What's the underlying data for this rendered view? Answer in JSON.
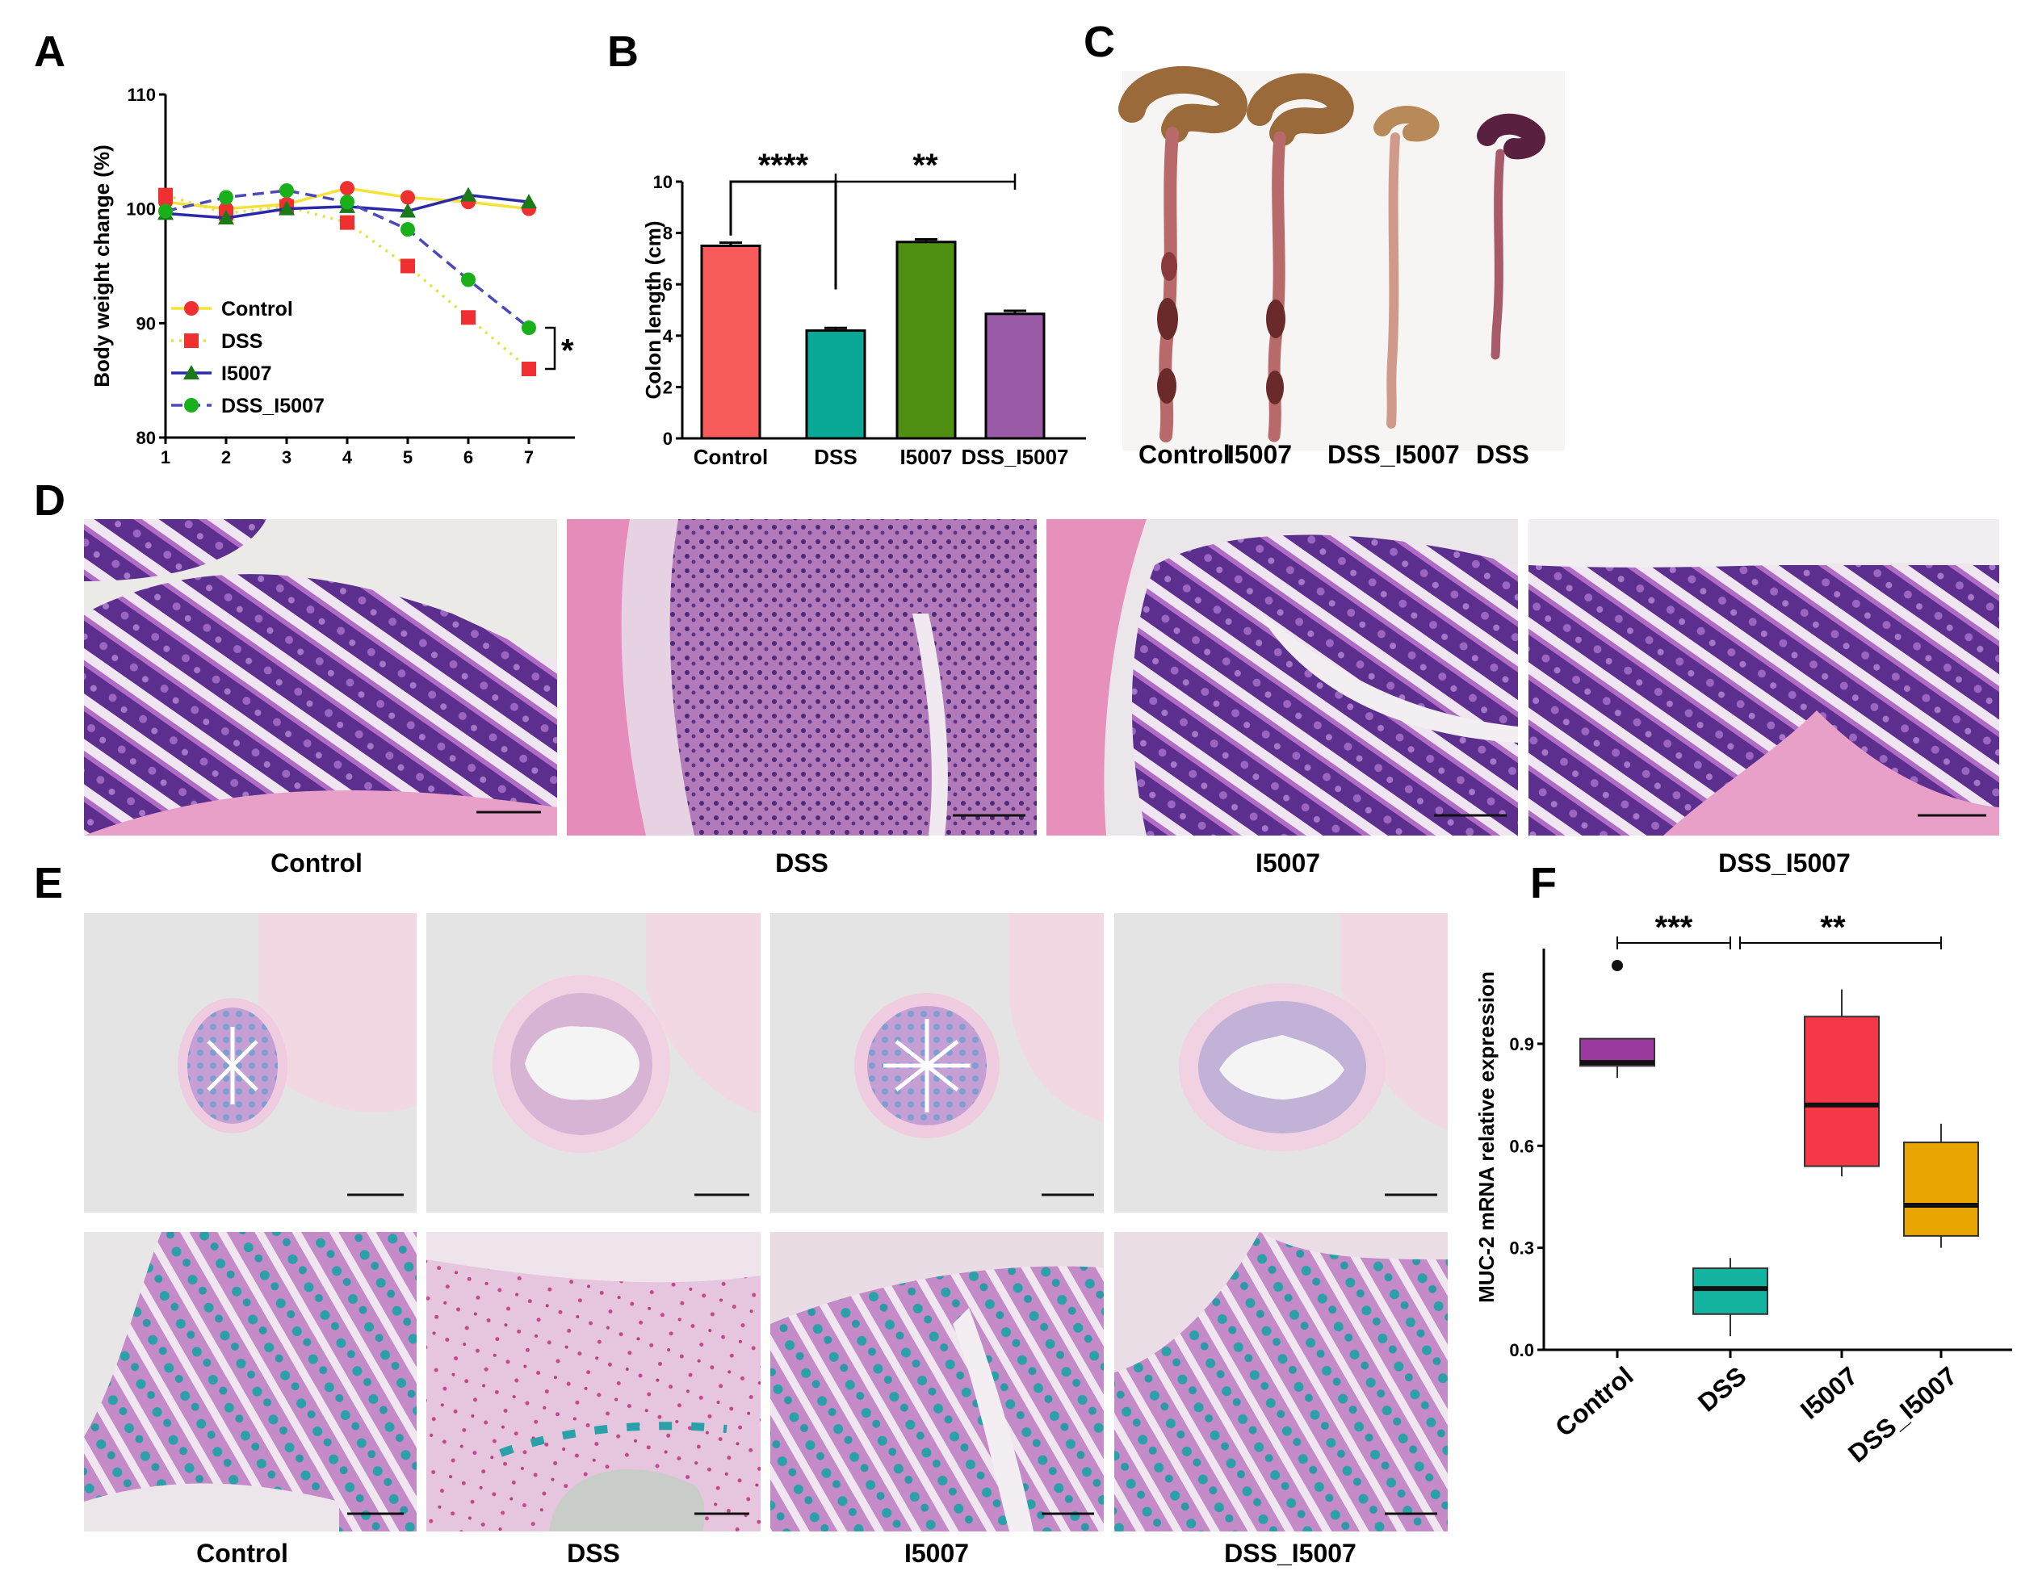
{
  "panels": {
    "A": "A",
    "B": "B",
    "C": "C",
    "D": "D",
    "E": "E",
    "F": "F"
  },
  "chart_data": [
    {
      "panel": "A",
      "type": "line",
      "title": "",
      "xlabel": "",
      "ylabel": "Body weight change (%)",
      "x": [
        1,
        2,
        3,
        4,
        5,
        6,
        7
      ],
      "xlim": [
        1,
        7.8
      ],
      "ylim": [
        80,
        110
      ],
      "yticks": [
        80,
        90,
        100,
        110
      ],
      "legend_position": "lower-left",
      "series": [
        {
          "name": "Control",
          "color": "#f03030",
          "line_color": "#f2e23a",
          "marker": "circle",
          "dash": "solid",
          "values": [
            100.6,
            100.0,
            100.4,
            101.8,
            101.0,
            100.6,
            100.0
          ]
        },
        {
          "name": "DSS",
          "color": "#f03030",
          "line_color": "#e8e040",
          "marker": "square",
          "dash": "dotted",
          "values": [
            101.2,
            99.6,
            100.2,
            98.8,
            95.0,
            90.5,
            86.0
          ]
        },
        {
          "name": "I5007",
          "color": "#1a7a1a",
          "line_color": "#2a2aa8",
          "marker": "triangle",
          "dash": "solid",
          "values": [
            99.6,
            99.2,
            100.0,
            100.2,
            99.8,
            101.2,
            100.6
          ]
        },
        {
          "name": "DSS_I5007",
          "color": "#1ab01a",
          "line_color": "#4a4ab8",
          "marker": "circle",
          "dash": "dashed",
          "values": [
            99.8,
            101.0,
            101.6,
            100.6,
            98.2,
            93.8,
            89.6
          ]
        }
      ],
      "annotations": [
        "*"
      ]
    },
    {
      "panel": "B",
      "type": "bar",
      "title": "",
      "xlabel": "",
      "ylabel": "Colon length (cm)",
      "categories": [
        "Control",
        "DSS",
        "I5007",
        "DSS_I5007"
      ],
      "values": [
        7.5,
        4.2,
        7.65,
        4.85
      ],
      "errors": [
        0.12,
        0.1,
        0.1,
        0.12
      ],
      "colors": [
        "#f95a5a",
        "#0aa896",
        "#4f8f12",
        "#9b5aa6"
      ],
      "ylim": [
        0,
        10
      ],
      "yticks": [
        0,
        2,
        4,
        6,
        8,
        10
      ],
      "annotations": [
        "****",
        "**"
      ]
    },
    {
      "panel": "F",
      "type": "box",
      "title": "",
      "xlabel": "",
      "ylabel": "MUC-2 mRNA relative expression",
      "categories": [
        "Control",
        "DSS",
        "I5007",
        "DSS_I5007"
      ],
      "boxes": [
        {
          "name": "Control",
          "color": "#9b3a9e",
          "min": 0.8,
          "q1": 0.835,
          "median": 0.845,
          "q3": 0.915,
          "max": 0.915,
          "outliers": [
            1.13
          ]
        },
        {
          "name": "DSS",
          "color": "#14b4a0",
          "min": 0.04,
          "q1": 0.105,
          "median": 0.18,
          "q3": 0.24,
          "max": 0.27,
          "outliers": []
        },
        {
          "name": "I5007",
          "color": "#f43848",
          "min": 0.51,
          "q1": 0.54,
          "median": 0.72,
          "q3": 0.98,
          "max": 1.06,
          "outliers": []
        },
        {
          "name": "DSS_I5007",
          "color": "#e8a400",
          "min": 0.3,
          "q1": 0.335,
          "median": 0.425,
          "q3": 0.61,
          "max": 0.665,
          "outliers": []
        }
      ],
      "ylim": [
        0,
        1.18
      ],
      "yticks": [
        0.0,
        0.3,
        0.6,
        0.9
      ],
      "ytick_labels": [
        "0.0",
        "0.3",
        "0.6",
        "0.9"
      ],
      "annotations": [
        "***",
        "**"
      ]
    }
  ],
  "photo_C": {
    "labels": [
      "Control",
      "I5007",
      "DSS_I5007",
      "DSS"
    ]
  },
  "histology_D": {
    "labels": [
      "Control",
      "DSS",
      "I5007",
      "DSS_I5007"
    ]
  },
  "histology_E": {
    "labels": [
      "Control",
      "DSS",
      "I5007",
      "DSS_I5007"
    ]
  }
}
